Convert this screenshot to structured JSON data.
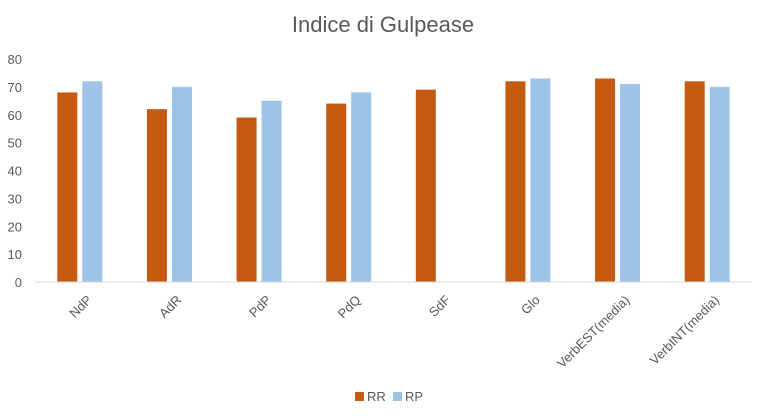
{
  "chart_data": {
    "type": "bar",
    "title": "Indice di Gulpease",
    "categories": [
      "NdP",
      "AdR",
      "PdP",
      "PdQ",
      "SdF",
      "Glo",
      "VerbEST(media)",
      "VerbINT(media)"
    ],
    "series": [
      {
        "name": "RR",
        "color": "#c55a11",
        "values": [
          68,
          62,
          59,
          64,
          69,
          72,
          73,
          72
        ]
      },
      {
        "name": "RP",
        "color": "#9dc3e6",
        "values": [
          72,
          70,
          65,
          68,
          null,
          73,
          71,
          70
        ]
      }
    ],
    "ylim": [
      0,
      80
    ],
    "yticks": [
      0,
      10,
      20,
      30,
      40,
      50,
      60,
      70,
      80
    ],
    "grid": false,
    "legend_position": "bottom"
  }
}
